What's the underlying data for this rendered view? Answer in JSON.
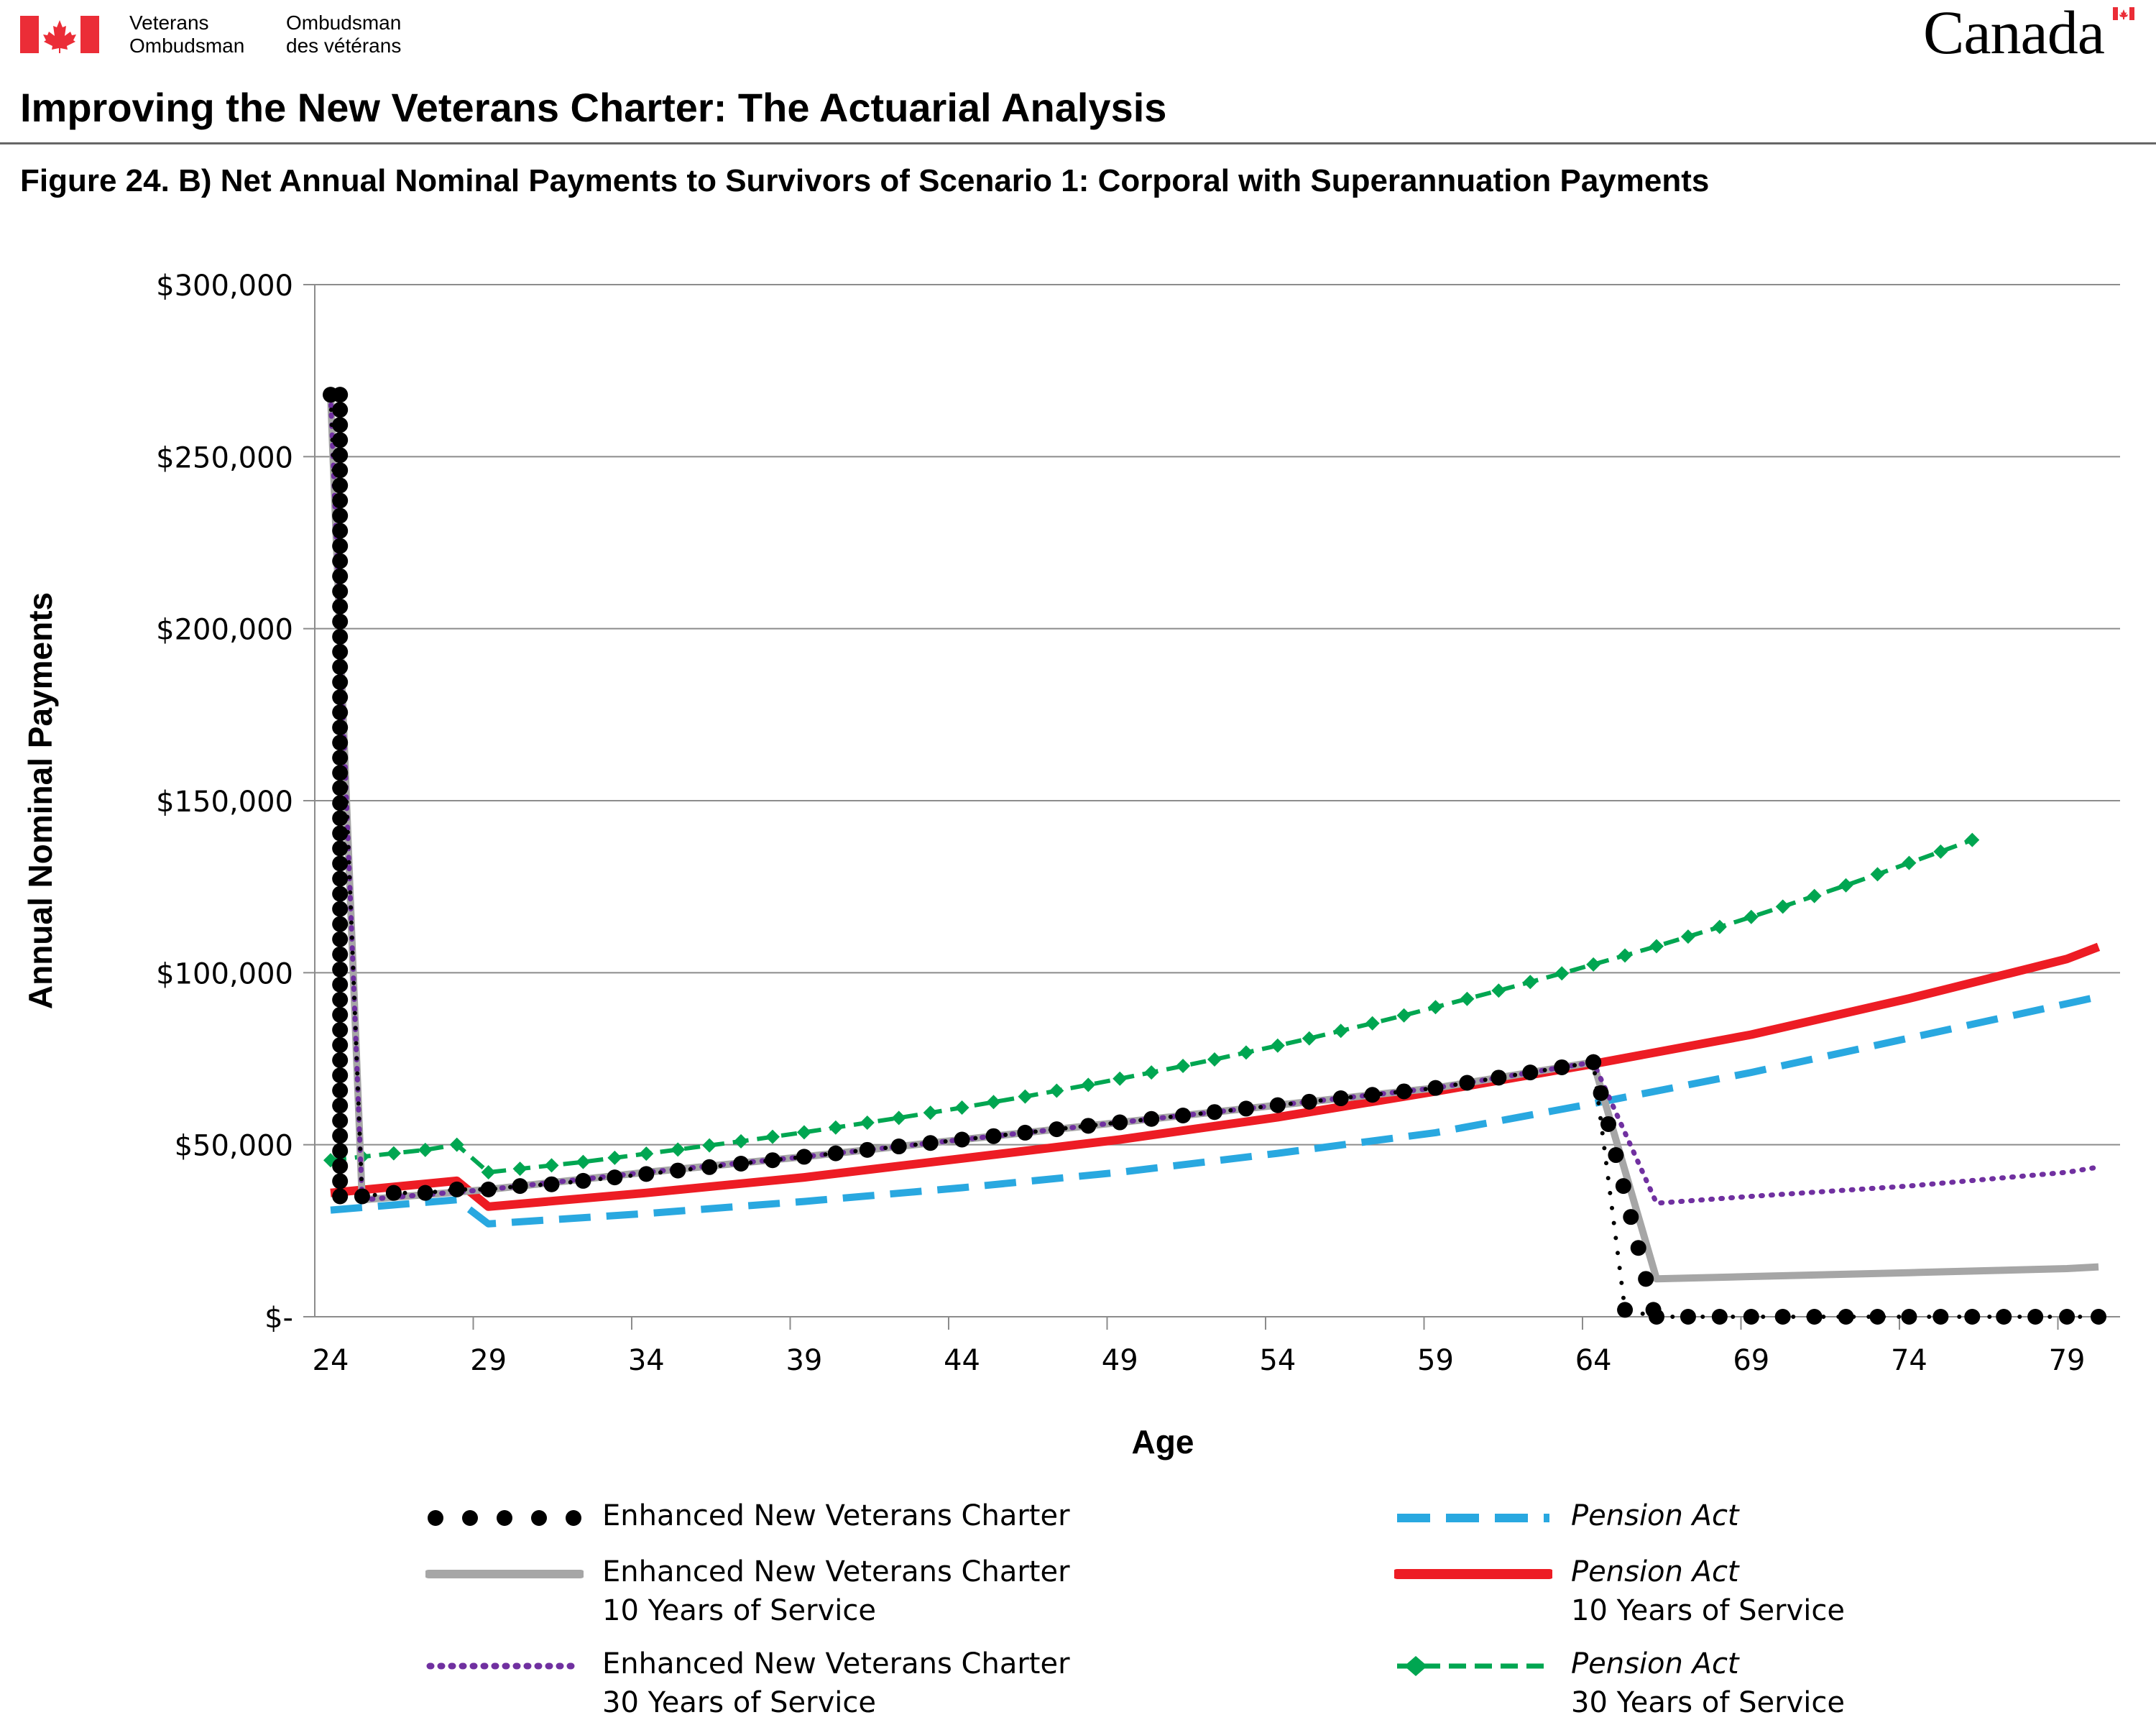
{
  "header": {
    "org_en_line1": "Veterans",
    "org_en_line2": "Ombudsman",
    "org_fr_line1": "Ombudsman",
    "org_fr_line2": "des vétérans",
    "wordmark": "Canada",
    "colors": {
      "flag_red": "#eb2d37"
    }
  },
  "document_title": "Improving the New Veterans Charter: The Actuarial Analysis",
  "figure_title": "Figure 24. B) Net Annual Nominal Payments to Survivors of Scenario 1: Corporal with Superannuation Payments",
  "chart_data": {
    "type": "line",
    "title": "",
    "xlabel": "Age",
    "ylabel": "Annual Nominal Payments",
    "xlim": [
      24,
      80
    ],
    "ylim": [
      0,
      300000
    ],
    "xticks": [
      24,
      29,
      34,
      39,
      44,
      49,
      54,
      59,
      64,
      69,
      74,
      79
    ],
    "yticks": [
      0,
      50000,
      100000,
      150000,
      200000,
      250000,
      300000
    ],
    "ytick_labels": [
      "$-",
      "$50,000",
      "$100,000",
      "$150,000",
      "$200,000",
      "$250,000",
      "$300,000"
    ],
    "grid": "horizontal",
    "legend_position": "bottom",
    "series": [
      {
        "name": "Enhanced New Veterans Charter",
        "name_line2": "",
        "italic": false,
        "color": "#000000",
        "style": "dots",
        "points": [
          [
            24,
            268000
          ],
          [
            25,
            35000
          ],
          [
            26,
            36000
          ],
          [
            27,
            36000
          ],
          [
            28,
            37000
          ],
          [
            29,
            37000
          ],
          [
            30,
            38000
          ],
          [
            31,
            38500
          ],
          [
            32,
            39500
          ],
          [
            33,
            40500
          ],
          [
            34,
            41500
          ],
          [
            35,
            42500
          ],
          [
            36,
            43500
          ],
          [
            37,
            44500
          ],
          [
            38,
            45500
          ],
          [
            39,
            46500
          ],
          [
            40,
            47500
          ],
          [
            41,
            48500
          ],
          [
            42,
            49500
          ],
          [
            43,
            50500
          ],
          [
            44,
            51500
          ],
          [
            45,
            52500
          ],
          [
            46,
            53500
          ],
          [
            47,
            54500
          ],
          [
            48,
            55500
          ],
          [
            49,
            56500
          ],
          [
            50,
            57500
          ],
          [
            51,
            58500
          ],
          [
            52,
            59500
          ],
          [
            53,
            60500
          ],
          [
            54,
            61500
          ],
          [
            55,
            62500
          ],
          [
            56,
            63500
          ],
          [
            57,
            64500
          ],
          [
            58,
            65500
          ],
          [
            59,
            66500
          ],
          [
            60,
            68000
          ],
          [
            61,
            69500
          ],
          [
            62,
            71000
          ],
          [
            63,
            72500
          ],
          [
            64,
            74000
          ],
          [
            65,
            2000
          ],
          [
            66,
            0
          ],
          [
            67,
            0
          ],
          [
            68,
            0
          ],
          [
            69,
            0
          ],
          [
            70,
            0
          ],
          [
            71,
            0
          ],
          [
            72,
            0
          ],
          [
            73,
            0
          ],
          [
            74,
            0
          ],
          [
            75,
            0
          ],
          [
            76,
            0
          ],
          [
            77,
            0
          ],
          [
            78,
            0
          ],
          [
            79,
            0
          ],
          [
            80,
            0
          ]
        ]
      },
      {
        "name": "Enhanced New Veterans Charter",
        "name_line2": "10 Years of Service",
        "italic": false,
        "color": "#a6a6a6",
        "style": "solid-thick",
        "points": [
          [
            24,
            268000
          ],
          [
            25,
            34000
          ],
          [
            29,
            37000
          ],
          [
            34,
            42000
          ],
          [
            39,
            46500
          ],
          [
            44,
            51500
          ],
          [
            49,
            56500
          ],
          [
            54,
            61500
          ],
          [
            59,
            66500
          ],
          [
            64,
            74000
          ],
          [
            66,
            11000
          ],
          [
            69,
            11700
          ],
          [
            74,
            12800
          ],
          [
            79,
            14000
          ],
          [
            80,
            14500
          ]
        ]
      },
      {
        "name": "Enhanced New Veterans Charter",
        "name_line2": "30 Years of Service",
        "italic": false,
        "color": "#7030a0",
        "style": "dotted",
        "points": [
          [
            24,
            268000
          ],
          [
            25,
            34000
          ],
          [
            29,
            37000
          ],
          [
            34,
            42000
          ],
          [
            39,
            46500
          ],
          [
            44,
            51500
          ],
          [
            49,
            56500
          ],
          [
            54,
            61500
          ],
          [
            59,
            66500
          ],
          [
            64,
            74000
          ],
          [
            66,
            33000
          ],
          [
            69,
            35000
          ],
          [
            74,
            38000
          ],
          [
            79,
            42000
          ],
          [
            80,
            43500
          ]
        ]
      },
      {
        "name": "Pension Act",
        "name_line2": "",
        "italic": true,
        "color": "#29a8e0",
        "style": "dashed",
        "points": [
          [
            24,
            31000
          ],
          [
            28,
            34000
          ],
          [
            29,
            27000
          ],
          [
            34,
            30000
          ],
          [
            39,
            33500
          ],
          [
            44,
            37500
          ],
          [
            49,
            42000
          ],
          [
            54,
            47500
          ],
          [
            59,
            53500
          ],
          [
            64,
            62000
          ],
          [
            69,
            71000
          ],
          [
            74,
            81000
          ],
          [
            79,
            91000
          ],
          [
            80,
            93000
          ]
        ]
      },
      {
        "name": "Pension Act",
        "name_line2": "10 Years of Service",
        "italic": true,
        "color": "#ed1c24",
        "style": "solid",
        "points": [
          [
            24,
            36000
          ],
          [
            28,
            39500
          ],
          [
            29,
            32000
          ],
          [
            34,
            36000
          ],
          [
            39,
            40500
          ],
          [
            44,
            46000
          ],
          [
            49,
            51500
          ],
          [
            54,
            58000
          ],
          [
            59,
            65500
          ],
          [
            64,
            73500
          ],
          [
            69,
            82000
          ],
          [
            74,
            92500
          ],
          [
            79,
            104000
          ],
          [
            80,
            107500
          ]
        ]
      },
      {
        "name": "Pension Act",
        "name_line2": "30 Years of Service",
        "italic": true,
        "color": "#00a651",
        "style": "dashed-diamond",
        "points": [
          [
            24,
            45500
          ],
          [
            25,
            46500
          ],
          [
            26,
            47500
          ],
          [
            27,
            48500
          ],
          [
            28,
            50000
          ],
          [
            29,
            42000
          ],
          [
            30,
            43000
          ],
          [
            31,
            44000
          ],
          [
            32,
            45000
          ],
          [
            33,
            46200
          ],
          [
            34,
            47400
          ],
          [
            35,
            48600
          ],
          [
            36,
            49800
          ],
          [
            37,
            51000
          ],
          [
            38,
            52300
          ],
          [
            39,
            53600
          ],
          [
            40,
            55000
          ],
          [
            41,
            56400
          ],
          [
            42,
            57800
          ],
          [
            43,
            59300
          ],
          [
            44,
            60800
          ],
          [
            45,
            62400
          ],
          [
            46,
            64000
          ],
          [
            47,
            65700
          ],
          [
            48,
            67400
          ],
          [
            49,
            69200
          ],
          [
            50,
            71000
          ],
          [
            51,
            72900
          ],
          [
            52,
            74800
          ],
          [
            53,
            76800
          ],
          [
            54,
            78800
          ],
          [
            55,
            80900
          ],
          [
            56,
            83100
          ],
          [
            57,
            85300
          ],
          [
            58,
            87600
          ],
          [
            59,
            90000
          ],
          [
            60,
            92400
          ],
          [
            61,
            94800
          ],
          [
            62,
            97300
          ],
          [
            63,
            99800
          ],
          [
            64,
            102400
          ],
          [
            65,
            105000
          ],
          [
            66,
            107700
          ],
          [
            67,
            110500
          ],
          [
            68,
            113300
          ],
          [
            69,
            116200
          ],
          [
            70,
            119200
          ],
          [
            71,
            122300
          ],
          [
            72,
            125400
          ],
          [
            73,
            128600
          ],
          [
            74,
            131900
          ],
          [
            75,
            135200
          ],
          [
            76,
            138600
          ]
        ]
      }
    ]
  }
}
